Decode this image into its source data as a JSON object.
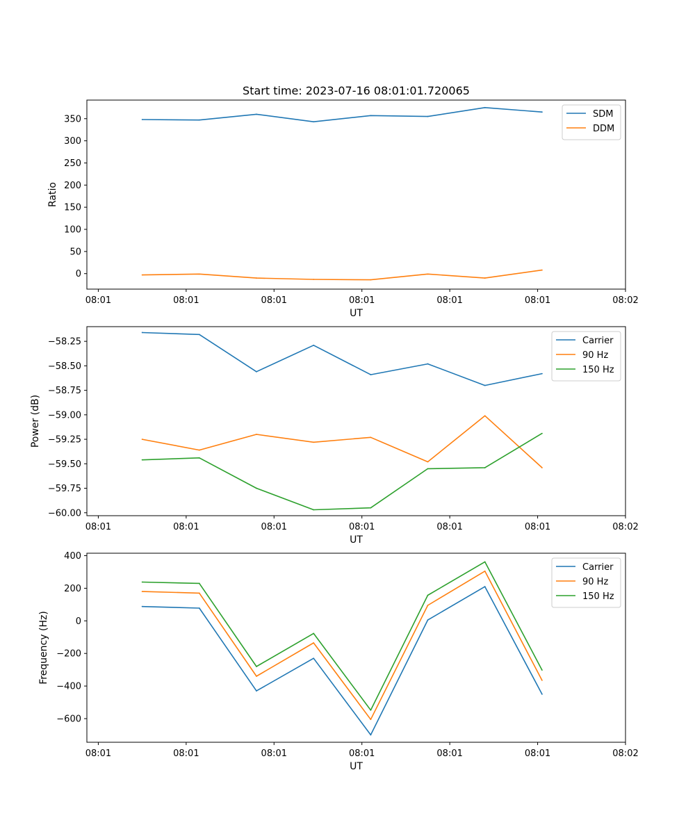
{
  "figure_title": "Start time: 2023-07-16 08:01:01.720065",
  "chart_data": [
    {
      "type": "line",
      "title": "Start time: 2023-07-16 08:01:01.720065",
      "xlabel": "UT",
      "ylabel": "Ratio",
      "x": [
        0.5,
        1.15,
        1.8,
        2.45,
        3.1,
        3.75,
        4.4,
        5.05
      ],
      "xlim": [
        -0.13,
        6.0
      ],
      "xticks": [
        0,
        1,
        2,
        3,
        4,
        5,
        6
      ],
      "xtick_labels": [
        "08:01",
        "08:01",
        "08:01",
        "08:01",
        "08:01",
        "08:01",
        "08:02"
      ],
      "ylim": [
        -35,
        392
      ],
      "yticks": [
        0,
        50,
        100,
        150,
        200,
        250,
        300,
        350
      ],
      "ytick_labels": [
        "0",
        "50",
        "100",
        "150",
        "200",
        "250",
        "300",
        "350"
      ],
      "legend_position": "top-right",
      "series": [
        {
          "name": "SDM",
          "color": "#1f77b4",
          "values": [
            348,
            347,
            360,
            343,
            357,
            355,
            375,
            365
          ]
        },
        {
          "name": "DDM",
          "color": "#ff7f0e",
          "values": [
            -3,
            -1,
            -10,
            -13,
            -14,
            -1,
            -10,
            8
          ]
        }
      ]
    },
    {
      "type": "line",
      "title": "",
      "xlabel": "UT",
      "ylabel": "Power (dB)",
      "x": [
        0.5,
        1.15,
        1.8,
        2.45,
        3.1,
        3.75,
        4.4,
        5.05
      ],
      "xlim": [
        -0.13,
        6.0
      ],
      "xticks": [
        0,
        1,
        2,
        3,
        4,
        5,
        6
      ],
      "xtick_labels": [
        "08:01",
        "08:01",
        "08:01",
        "08:01",
        "08:01",
        "08:01",
        "08:02"
      ],
      "ylim": [
        -60.03,
        -58.1
      ],
      "yticks": [
        -58.25,
        -58.5,
        -58.75,
        -59.0,
        -59.25,
        -59.5,
        -59.75,
        -60.0
      ],
      "ytick_labels": [
        "−58.25",
        "−58.50",
        "−58.75",
        "−59.00",
        "−59.25",
        "−59.50",
        "−59.75",
        "−60.00"
      ],
      "legend_position": "top-right",
      "series": [
        {
          "name": "Carrier",
          "color": "#1f77b4",
          "values": [
            -58.16,
            -58.18,
            -58.56,
            -58.29,
            -58.59,
            -58.48,
            -58.7,
            -58.58
          ]
        },
        {
          "name": "90 Hz",
          "color": "#ff7f0e",
          "values": [
            -59.25,
            -59.36,
            -59.2,
            -59.28,
            -59.23,
            -59.48,
            -59.01,
            -59.54
          ]
        },
        {
          "name": "150 Hz",
          "color": "#2ca02c",
          "values": [
            -59.46,
            -59.44,
            -59.75,
            -59.97,
            -59.95,
            -59.55,
            -59.54,
            -59.19
          ]
        }
      ]
    },
    {
      "type": "line",
      "title": "",
      "xlabel": "UT",
      "ylabel": "Frequency (Hz)",
      "x": [
        0.5,
        1.15,
        1.8,
        2.45,
        3.1,
        3.75,
        4.4,
        5.05
      ],
      "xlim": [
        -0.13,
        6.0
      ],
      "xticks": [
        0,
        1,
        2,
        3,
        4,
        5,
        6
      ],
      "xtick_labels": [
        "08:01",
        "08:01",
        "08:01",
        "08:01",
        "08:01",
        "08:01",
        "08:02"
      ],
      "ylim": [
        -745,
        415
      ],
      "yticks": [
        400,
        200,
        0,
        -200,
        -400,
        -600
      ],
      "ytick_labels": [
        "400",
        "200",
        "0",
        "−200",
        "−400",
        "−600"
      ],
      "legend_position": "top-right",
      "series": [
        {
          "name": "Carrier",
          "color": "#1f77b4",
          "values": [
            88,
            78,
            -430,
            -230,
            -700,
            5,
            210,
            -450
          ]
        },
        {
          "name": "90 Hz",
          "color": "#ff7f0e",
          "values": [
            180,
            170,
            -340,
            -135,
            -605,
            95,
            305,
            -365
          ]
        },
        {
          "name": "150 Hz",
          "color": "#2ca02c",
          "values": [
            238,
            230,
            -280,
            -77,
            -548,
            157,
            362,
            -302
          ]
        }
      ]
    }
  ]
}
